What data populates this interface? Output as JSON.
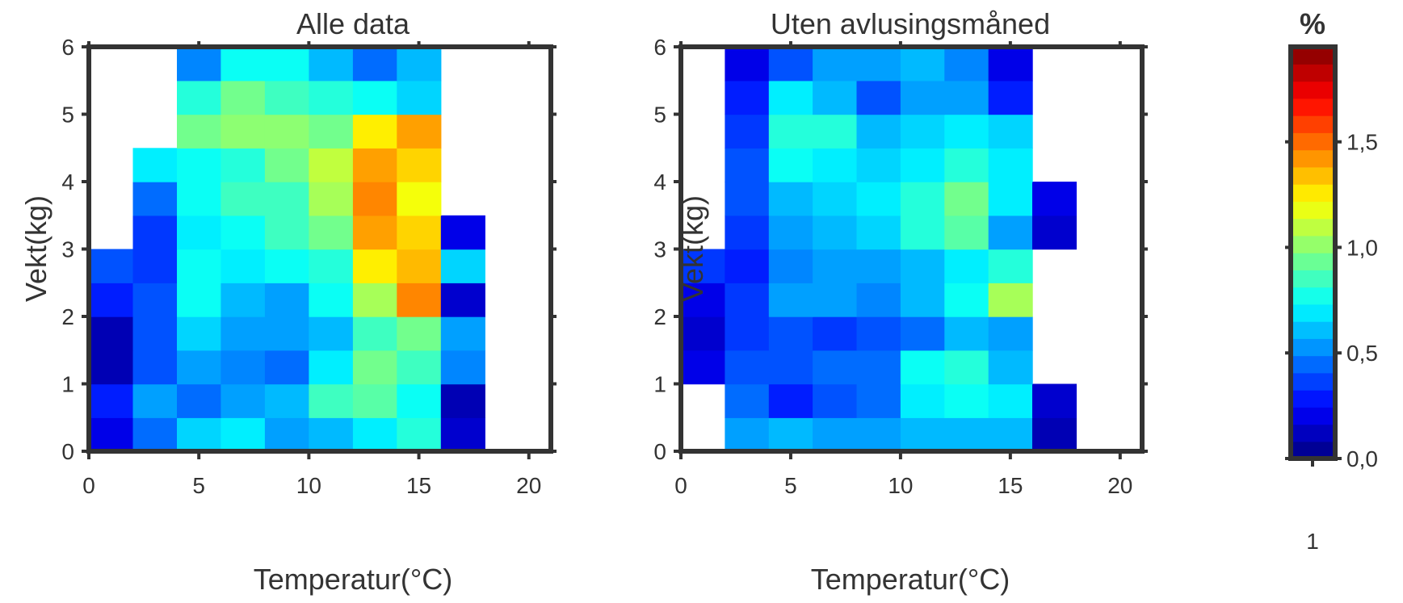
{
  "chart_data": [
    {
      "type": "heatmap",
      "title": "Alle data",
      "xlabel": "Temperatur(°C)",
      "ylabel": "Vekt(kg)",
      "xlim": [
        0,
        21
      ],
      "ylim": [
        0,
        6
      ],
      "xticks": [
        "0",
        "5",
        "10",
        "15",
        "20"
      ],
      "yticks": [
        "0",
        "1",
        "2",
        "3",
        "4",
        "5",
        "6"
      ],
      "x_breaks": [
        0,
        2,
        4,
        6,
        8,
        10,
        12,
        14,
        16,
        18
      ],
      "y_breaks": [
        0,
        0.5,
        1,
        1.5,
        2,
        2.5,
        3,
        3.5,
        4,
        4.5,
        5,
        5.5
      ],
      "cell_size": [
        2,
        0.5
      ],
      "z": [
        [
          0.2,
          0.45,
          0.65,
          0.7,
          0.55,
          0.6,
          0.7,
          0.8,
          0.15,
          null
        ],
        [
          0.3,
          0.55,
          0.45,
          0.55,
          0.6,
          0.85,
          0.9,
          0.75,
          0.1,
          null
        ],
        [
          0.1,
          0.4,
          0.55,
          0.5,
          0.45,
          0.7,
          0.95,
          0.85,
          0.5,
          null
        ],
        [
          0.1,
          0.4,
          0.65,
          0.55,
          0.55,
          0.6,
          0.85,
          0.95,
          0.55,
          null
        ],
        [
          0.3,
          0.4,
          0.75,
          0.6,
          0.55,
          0.75,
          1.05,
          1.45,
          0.15,
          null
        ],
        [
          0.4,
          0.35,
          0.75,
          0.7,
          0.75,
          0.8,
          1.25,
          1.35,
          0.65,
          null
        ],
        [
          null,
          0.35,
          0.7,
          0.75,
          0.85,
          0.95,
          1.4,
          1.3,
          0.2,
          null
        ],
        [
          null,
          0.45,
          0.75,
          0.85,
          0.85,
          1.05,
          1.45,
          1.2,
          null,
          null
        ],
        [
          null,
          0.7,
          0.75,
          0.8,
          0.95,
          1.1,
          1.4,
          1.3,
          null,
          null
        ],
        [
          null,
          null,
          0.95,
          1.0,
          1.0,
          0.95,
          1.25,
          1.4,
          null,
          null
        ],
        [
          null,
          null,
          0.8,
          0.95,
          0.85,
          0.8,
          0.75,
          0.65,
          null,
          null
        ],
        [
          null,
          null,
          0.5,
          0.75,
          0.75,
          0.6,
          0.45,
          0.6,
          null,
          null
        ]
      ]
    },
    {
      "type": "heatmap",
      "title": "Uten avlusingsmåned",
      "xlabel": "Temperatur(°C)",
      "ylabel": "Vekt(kg)",
      "xlim": [
        0,
        21
      ],
      "ylim": [
        0,
        6
      ],
      "xticks": [
        "0",
        "5",
        "10",
        "15",
        "20"
      ],
      "yticks": [
        "0",
        "1",
        "2",
        "3",
        "4",
        "5",
        "6"
      ],
      "x_breaks": [
        0,
        2,
        4,
        6,
        8,
        10,
        12,
        14,
        16,
        18
      ],
      "y_breaks": [
        0,
        0.5,
        1,
        1.5,
        2,
        2.5,
        3,
        3.5,
        4,
        4.5,
        5,
        5.5
      ],
      "cell_size": [
        2,
        0.5
      ],
      "z": [
        [
          null,
          0.55,
          0.6,
          0.55,
          0.55,
          0.6,
          0.6,
          0.6,
          0.1,
          null
        ],
        [
          null,
          0.45,
          0.3,
          0.4,
          0.45,
          0.7,
          0.75,
          0.7,
          0.15,
          null
        ],
        [
          0.2,
          0.4,
          0.4,
          0.45,
          0.45,
          0.75,
          0.8,
          0.6,
          null,
          null
        ],
        [
          0.15,
          0.35,
          0.4,
          0.35,
          0.4,
          0.45,
          0.6,
          0.55,
          null,
          null
        ],
        [
          0.2,
          0.35,
          0.55,
          0.55,
          0.5,
          0.6,
          0.75,
          1.05,
          null,
          null
        ],
        [
          0.35,
          0.3,
          0.5,
          0.55,
          0.55,
          0.6,
          0.7,
          0.8,
          null,
          null
        ],
        [
          null,
          0.35,
          0.55,
          0.6,
          0.65,
          0.8,
          0.9,
          0.55,
          0.15,
          null
        ],
        [
          null,
          0.4,
          0.6,
          0.65,
          0.7,
          0.8,
          0.95,
          0.7,
          0.2,
          null
        ],
        [
          null,
          0.4,
          0.75,
          0.7,
          0.65,
          0.7,
          0.8,
          0.7,
          null,
          null
        ],
        [
          null,
          0.35,
          0.8,
          0.8,
          0.6,
          0.65,
          0.7,
          0.65,
          null,
          null
        ],
        [
          null,
          0.3,
          0.7,
          0.6,
          0.4,
          0.55,
          0.55,
          0.3,
          null,
          null
        ],
        [
          null,
          0.2,
          0.4,
          0.55,
          0.55,
          0.6,
          0.5,
          0.2,
          null,
          null
        ]
      ]
    }
  ],
  "colorbar": {
    "unit": "%",
    "xtick": "1",
    "range": [
      0,
      1.95
    ],
    "ticks": [
      {
        "value": 0.0,
        "label": "0,0"
      },
      {
        "value": 0.5,
        "label": "0,5"
      },
      {
        "value": 1.0,
        "label": "1,0"
      },
      {
        "value": 1.5,
        "label": "1,5"
      }
    ],
    "colormap": "jet"
  },
  "colors": {
    "axis": "#333333",
    "background": "#ffffff"
  }
}
